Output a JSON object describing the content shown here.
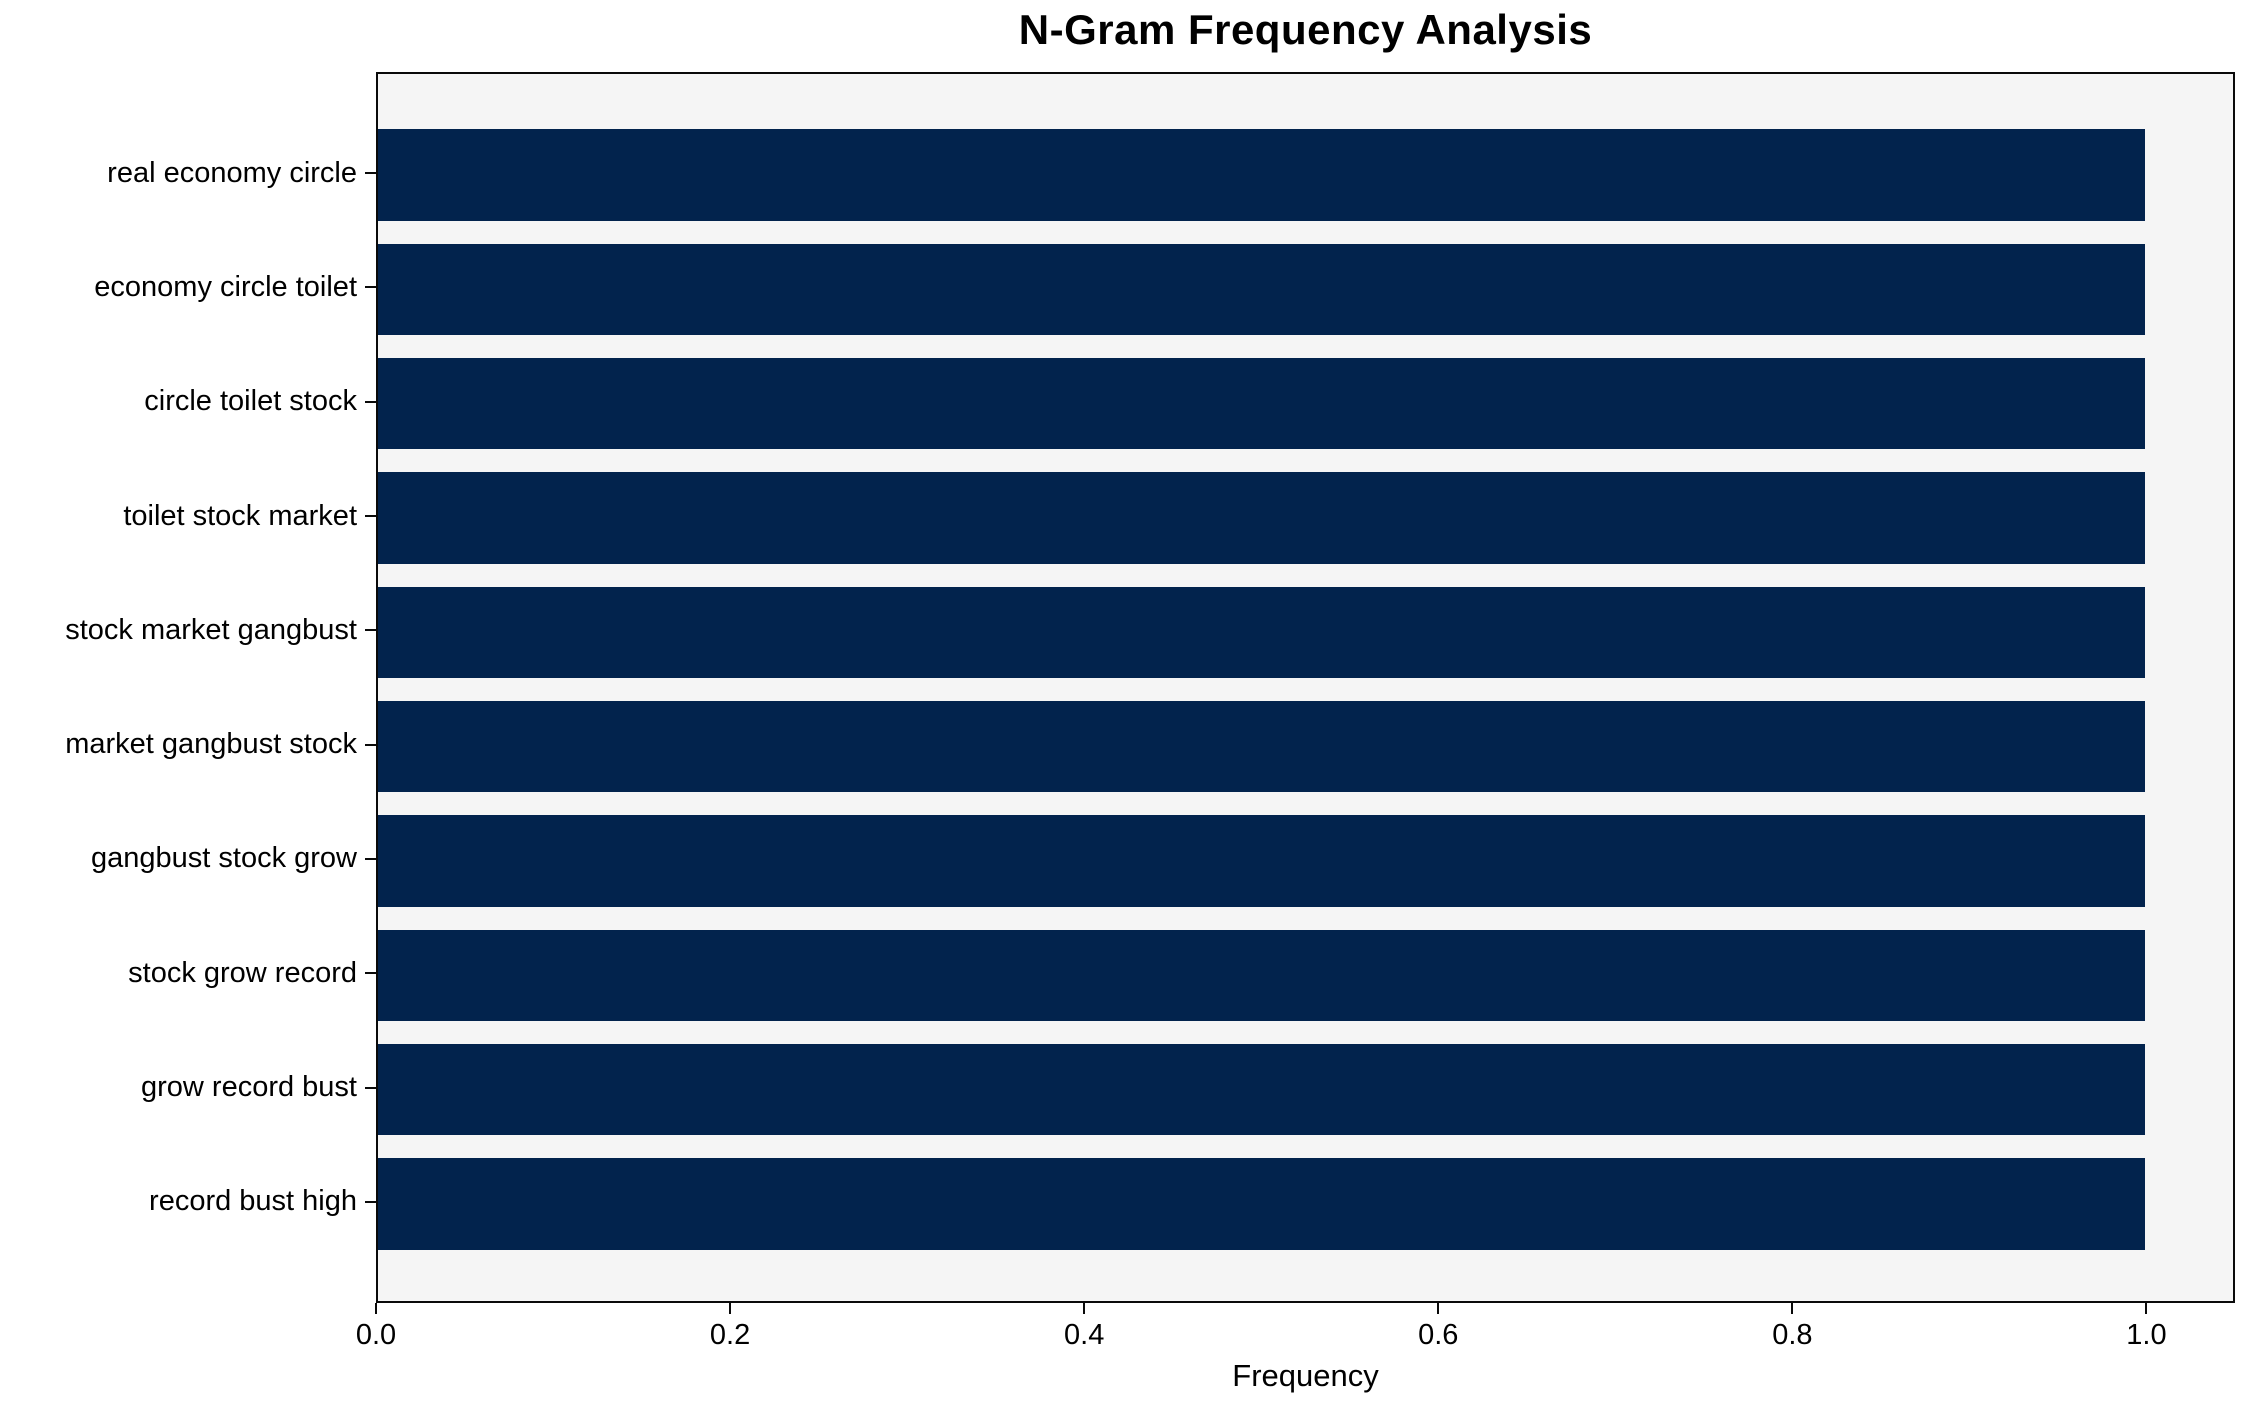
{
  "chart_data": {
    "type": "bar",
    "orientation": "horizontal",
    "title": "N-Gram Frequency Analysis",
    "xlabel": "Frequency",
    "ylabel": "",
    "categories": [
      "real economy circle",
      "economy circle toilet",
      "circle toilet stock",
      "toilet stock market",
      "stock market gangbust",
      "market gangbust stock",
      "gangbust stock grow",
      "stock grow record",
      "grow record bust",
      "record bust high"
    ],
    "values": [
      1.0,
      1.0,
      1.0,
      1.0,
      1.0,
      1.0,
      1.0,
      1.0,
      1.0,
      1.0
    ],
    "xlim": [
      0,
      1.05
    ],
    "xticks": [
      {
        "value": 0.0,
        "label": "0.0"
      },
      {
        "value": 0.2,
        "label": "0.2"
      },
      {
        "value": 0.4,
        "label": "0.4"
      },
      {
        "value": 0.6,
        "label": "0.6"
      },
      {
        "value": 0.8,
        "label": "0.8"
      },
      {
        "value": 1.0,
        "label": "1.0"
      }
    ],
    "grid": false,
    "legend": null,
    "colors": {
      "bar": "#02234d",
      "plot_background": "#f5f5f5",
      "figure_background": "#ffffff",
      "spine": "#0a0a0a",
      "text": "#000000"
    }
  }
}
